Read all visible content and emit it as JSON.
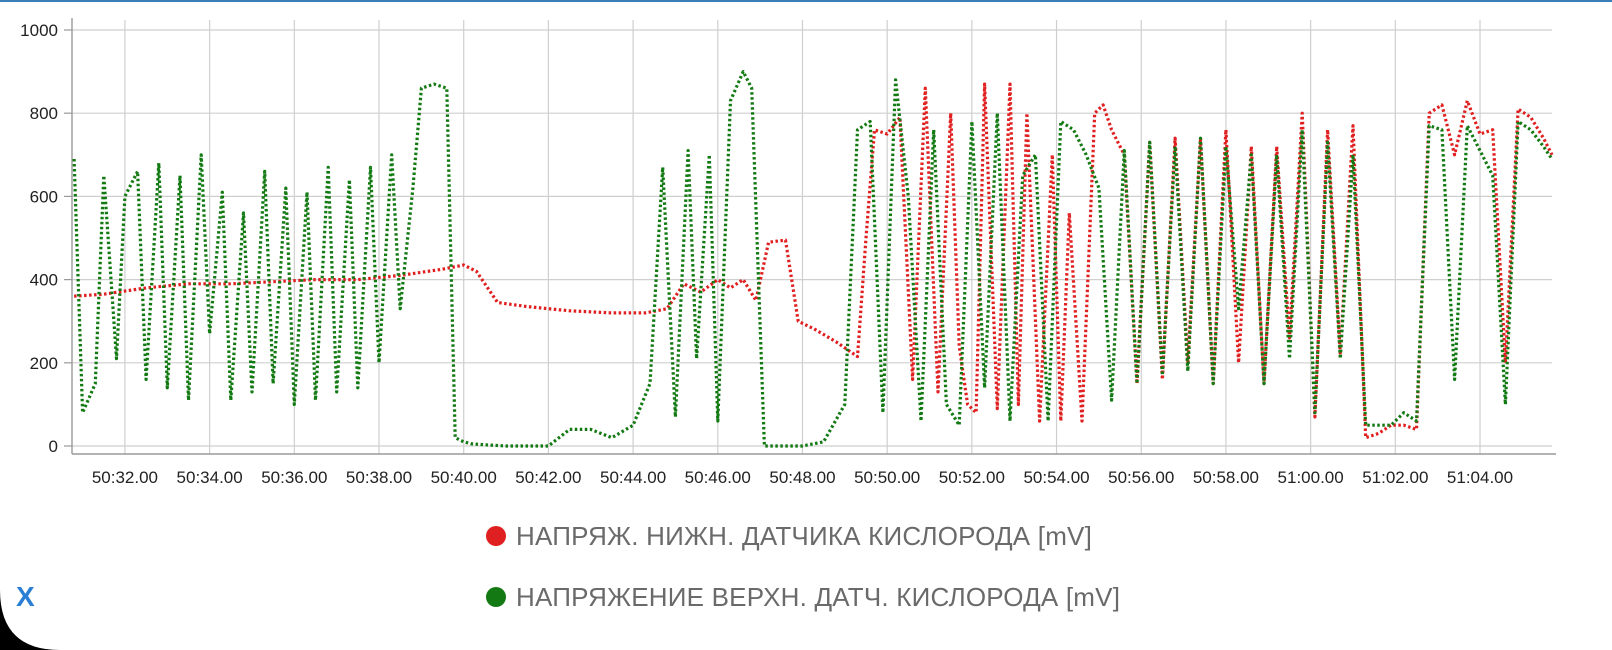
{
  "chart_data": {
    "type": "line",
    "y_ticks": [
      "0",
      "200",
      "400",
      "600",
      "800",
      "1000"
    ],
    "ylim": [
      0,
      1000
    ],
    "x_ticks": [
      "50:32.00",
      "50:34.00",
      "50:36.00",
      "50:38.00",
      "50:40.00",
      "50:42.00",
      "50:44.00",
      "50:46.00",
      "50:48.00",
      "50:50.00",
      "50:52.00",
      "50:54.00",
      "50:56.00",
      "50:58.00",
      "51:00.00",
      "51:02.00",
      "51:04.00"
    ],
    "xlim_seconds_from_50min": [
      30.75,
      65.7
    ],
    "grid": true,
    "series": [
      {
        "name": "НАПРЯЖ. НИЖН. ДАТЧИКА КИСЛОРОДА [mV]",
        "color": "#e02020",
        "x": [
          30.8,
          31.5,
          32.5,
          33.5,
          34.5,
          35.5,
          36.5,
          37.5,
          38.5,
          39.5,
          40.0,
          40.3,
          40.8,
          41.5,
          42.5,
          43.5,
          44.3,
          44.8,
          45.2,
          45.6,
          46.0,
          46.3,
          46.6,
          46.9,
          47.2,
          47.6,
          47.9,
          48.3,
          48.8,
          49.3,
          49.5,
          49.7,
          50.0,
          50.3,
          50.6,
          50.9,
          51.2,
          51.5,
          51.7,
          51.9,
          52.1,
          52.3,
          52.6,
          52.9,
          53.1,
          53.3,
          53.6,
          53.9,
          54.1,
          54.3,
          54.6,
          54.9,
          55.1,
          55.3,
          55.6,
          55.9,
          56.2,
          56.5,
          56.8,
          57.1,
          57.4,
          57.7,
          58.0,
          58.3,
          58.6,
          58.9,
          59.2,
          59.5,
          59.8,
          60.1,
          60.4,
          60.7,
          61.0,
          61.3,
          61.6,
          61.9,
          62.2,
          62.5,
          62.8,
          63.1,
          63.4,
          63.7,
          64.0,
          64.3,
          64.6,
          64.9,
          65.2,
          65.5,
          65.7
        ],
        "y": [
          360,
          365,
          380,
          390,
          390,
          395,
          400,
          400,
          410,
          425,
          435,
          420,
          345,
          335,
          325,
          320,
          320,
          330,
          390,
          370,
          400,
          380,
          400,
          350,
          490,
          495,
          300,
          280,
          250,
          215,
          500,
          760,
          750,
          790,
          160,
          860,
          130,
          800,
          240,
          100,
          80,
          870,
          90,
          870,
          100,
          800,
          60,
          700,
          60,
          560,
          60,
          800,
          820,
          760,
          700,
          150,
          730,
          160,
          740,
          200,
          740,
          150,
          760,
          200,
          720,
          150,
          720,
          260,
          800,
          70,
          760,
          220,
          770,
          20,
          30,
          50,
          50,
          40,
          800,
          820,
          700,
          830,
          750,
          760,
          200,
          810,
          790,
          740,
          700
        ]
      },
      {
        "name": "НАПРЯЖЕНИЕ ВЕРХН. ДАТЧ. КИСЛОРОДА [mV]",
        "color": "#137a13",
        "x": [
          30.8,
          31.0,
          31.3,
          31.5,
          31.8,
          32.0,
          32.3,
          32.5,
          32.8,
          33.0,
          33.3,
          33.5,
          33.8,
          34.0,
          34.3,
          34.5,
          34.8,
          35.0,
          35.3,
          35.5,
          35.8,
          36.0,
          36.3,
          36.5,
          36.8,
          37.0,
          37.3,
          37.5,
          37.8,
          38.0,
          38.3,
          38.5,
          38.8,
          39.0,
          39.3,
          39.6,
          39.8,
          40.0,
          40.2,
          40.5,
          41.0,
          41.5,
          42.0,
          42.5,
          43.0,
          43.5,
          44.0,
          44.4,
          44.7,
          45.0,
          45.3,
          45.5,
          45.8,
          46.0,
          46.3,
          46.6,
          46.8,
          47.1,
          47.4,
          47.7,
          48.0,
          48.5,
          49.0,
          49.3,
          49.6,
          49.9,
          50.2,
          50.5,
          50.8,
          51.1,
          51.4,
          51.7,
          52.0,
          52.3,
          52.6,
          52.9,
          53.2,
          53.5,
          53.8,
          54.1,
          54.4,
          54.7,
          55.0,
          55.3,
          55.6,
          55.9,
          56.2,
          56.5,
          56.8,
          57.1,
          57.4,
          57.7,
          58.0,
          58.3,
          58.6,
          58.9,
          59.2,
          59.5,
          59.8,
          60.1,
          60.4,
          60.7,
          61.0,
          61.3,
          61.6,
          61.9,
          62.2,
          62.5,
          62.8,
          63.1,
          63.4,
          63.7,
          64.0,
          64.3,
          64.6,
          64.9,
          65.2,
          65.5,
          65.7
        ],
        "y": [
          690,
          80,
          150,
          650,
          210,
          600,
          660,
          160,
          680,
          140,
          650,
          110,
          700,
          270,
          610,
          110,
          560,
          130,
          660,
          150,
          620,
          100,
          610,
          110,
          670,
          130,
          640,
          140,
          670,
          200,
          700,
          330,
          620,
          860,
          870,
          860,
          20,
          10,
          5,
          3,
          0,
          0,
          0,
          40,
          40,
          20,
          50,
          150,
          670,
          70,
          710,
          210,
          700,
          60,
          830,
          900,
          860,
          0,
          0,
          0,
          0,
          10,
          100,
          760,
          780,
          80,
          880,
          600,
          60,
          760,
          100,
          50,
          780,
          140,
          800,
          60,
          650,
          700,
          60,
          780,
          760,
          700,
          620,
          110,
          710,
          150,
          730,
          170,
          720,
          180,
          740,
          150,
          720,
          330,
          700,
          150,
          700,
          210,
          760,
          80,
          730,
          210,
          700,
          50,
          50,
          50,
          80,
          60,
          770,
          760,
          160,
          770,
          710,
          650,
          100,
          780,
          760,
          720,
          690
        ]
      }
    ]
  },
  "legend": {
    "items": [
      {
        "label": "НАПРЯЖ. НИЖН. ДАТЧИКА КИСЛОРОДА [mV]",
        "color": "#e02020"
      },
      {
        "label": "НАПРЯЖЕНИЕ ВЕРХН. ДАТЧ. КИСЛОРОДА [mV]",
        "color": "#137a13"
      }
    ]
  },
  "close_button": {
    "label": "X",
    "icon": "close-icon"
  }
}
